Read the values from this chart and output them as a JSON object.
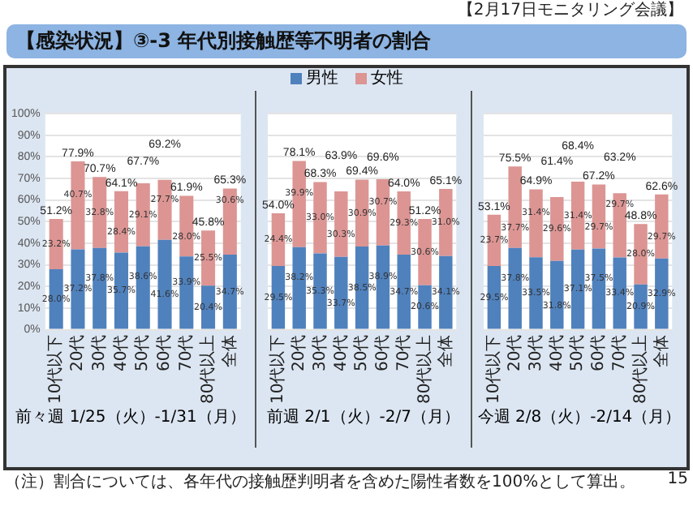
{
  "chart_data": [
    {
      "type": "bar",
      "title": "【感染状況】③-3 年代別接触歴等不明者の割合",
      "xlabel": "前々週 1/25（火）-1/31（月）",
      "annotations": [
        "【2月17日モニタリング会議】",
        "（注）割合については、各年代の接触歴判明者を含めた陽性者数を100%として算出。",
        "15"
      ],
      "categories": [
        "10代以下",
        "20代",
        "30代",
        "40代",
        "50代",
        "60代",
        "70代",
        "80代以上",
        "全体"
      ],
      "series": [
        {
          "name": "男性",
          "color": "#4f81bd",
          "values": [
            28.0,
            37.2,
            37.8,
            35.7,
            38.6,
            41.6,
            33.9,
            20.4,
            34.7
          ],
          "value_labels": [
            "28.0%",
            "37.2%",
            "37.8%",
            "35.7%",
            "38.6%",
            "41.6%",
            "33.9%",
            "20.4%",
            "34.7%"
          ]
        },
        {
          "name": "女性",
          "color": "#dc9593",
          "values": [
            23.2,
            40.7,
            32.8,
            28.4,
            29.1,
            27.7,
            28.0,
            25.5,
            30.6
          ],
          "value_labels": [
            "23.2%",
            "40.7%",
            "32.8%",
            "28.4%",
            "29.1%",
            "27.7%",
            "28.0%",
            "25.5%",
            "30.6%"
          ]
        }
      ],
      "totals": [
        "51.2%",
        "77.9%",
        "70.7%",
        "64.1%",
        "67.7%",
        "69.2%",
        "61.9%",
        "45.8%",
        "65.3%"
      ],
      "stacked": true,
      "grid": "y",
      "legend": "top",
      "ylim": [
        0,
        100
      ],
      "yticks": [
        {
          "value": 0,
          "label": "0%"
        },
        {
          "value": 10,
          "label": "10%"
        },
        {
          "value": 20,
          "label": "20%"
        },
        {
          "value": 30,
          "label": "30%"
        },
        {
          "value": 40,
          "label": "40%"
        },
        {
          "value": 50,
          "label": "50%"
        },
        {
          "value": 60,
          "label": "60%"
        },
        {
          "value": 70,
          "label": "70%"
        },
        {
          "value": 80,
          "label": "80%"
        },
        {
          "value": 90,
          "label": "90%"
        },
        {
          "value": 100,
          "label": "100%"
        }
      ]
    },
    {
      "type": "bar",
      "xlabel": "前週 2/1（火）-2/7（月）",
      "categories": [
        "10代以下",
        "20代",
        "30代",
        "40代",
        "50代",
        "60代",
        "70代",
        "80代以上",
        "全体"
      ],
      "series": [
        {
          "color": "#4f81bd",
          "values": [
            29.5,
            38.2,
            35.3,
            33.7,
            38.5,
            38.9,
            34.7,
            20.6,
            34.1
          ],
          "value_labels": [
            "29.5%",
            "38.2%",
            "35.3%",
            "33.7%",
            "38.5%",
            "38.9%",
            "34.7%",
            "20.6%",
            "34.1%"
          ]
        },
        {
          "color": "#dc9593",
          "values": [
            24.4,
            39.9,
            33.0,
            30.3,
            30.9,
            30.7,
            29.3,
            30.6,
            31.0
          ],
          "value_labels": [
            "24.4%",
            "39.9%",
            "33.0%",
            "30.3%",
            "30.9%",
            "30.7%",
            "29.3%",
            "30.6%",
            "31.0%"
          ]
        }
      ],
      "totals": [
        "54.0%",
        "78.1%",
        "68.3%",
        "63.9%",
        "69.4%",
        "69.6%",
        "64.0%",
        "51.2%",
        "65.1%"
      ],
      "stacked": true,
      "grid": "y",
      "tick_labels": "x",
      "ylim": [
        0,
        100
      ],
      "yticks": [
        0,
        10,
        20,
        30,
        40,
        50,
        60,
        70,
        80,
        90,
        100
      ]
    },
    {
      "type": "bar",
      "xlabel": "今週 2/8（火）-2/14（月）",
      "categories": [
        "10代以下",
        "20代",
        "30代",
        "40代",
        "50代",
        "60代",
        "70代",
        "80代以上",
        "全体"
      ],
      "series": [
        {
          "color": "#4f81bd",
          "values": [
            29.5,
            37.8,
            33.5,
            31.8,
            37.1,
            37.5,
            33.4,
            20.9,
            32.9
          ],
          "value_labels": [
            "29.5%",
            "37.8%",
            "33.5%",
            "31.8%",
            "37.1%",
            "37.5%",
            "33.4%",
            "20.9%",
            "32.9%"
          ]
        },
        {
          "color": "#dc9593",
          "values": [
            23.7,
            37.7,
            31.4,
            29.6,
            31.4,
            29.7,
            29.7,
            28.0,
            29.7
          ],
          "value_labels": [
            "23.7%",
            "37.7%",
            "31.4%",
            "29.6%",
            "31.4%",
            "29.7%",
            "29.7%",
            "28.0%",
            "29.7%"
          ]
        }
      ],
      "totals": [
        "53.1%",
        "75.5%",
        "64.9%",
        "61.4%",
        "68.4%",
        "67.2%",
        "63.2%",
        "48.8%",
        "62.6%"
      ],
      "stacked": true,
      "grid": "y",
      "tick_labels": "x",
      "ylim": [
        0,
        100
      ],
      "yticks": [
        0,
        10,
        20,
        30,
        40,
        50,
        60,
        70,
        80,
        90,
        100
      ]
    }
  ]
}
